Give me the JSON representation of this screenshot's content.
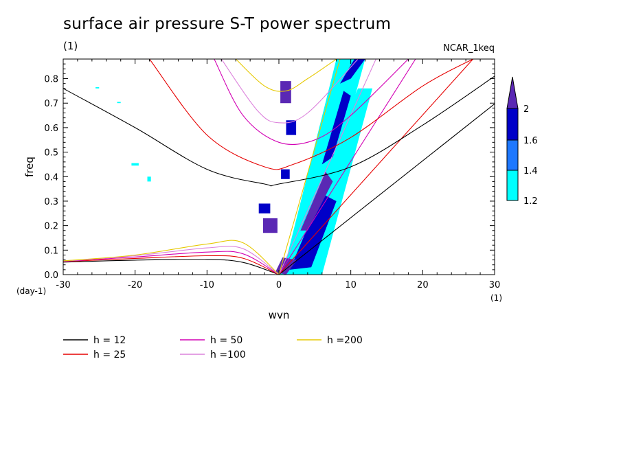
{
  "title": "surface air pressure S-T power spectrum",
  "subtitle_left": "(1)",
  "subtitle_right": "NCAR_1keq",
  "chart_data": {
    "type": "heatmap",
    "xlabel": "wvn",
    "ylabel": "freq",
    "x_unit": "(1)",
    "y_unit": "(day-1)",
    "xlim": [
      -30,
      30
    ],
    "ylim": [
      0.0,
      0.88
    ],
    "x_ticks": [
      "-30",
      "-20",
      "-10",
      "0",
      "10",
      "20",
      "30"
    ],
    "x_tick_values": [
      -30,
      -20,
      -10,
      0,
      10,
      20,
      30
    ],
    "y_ticks": [
      "0.0",
      "0.1",
      "0.2",
      "0.3",
      "0.4",
      "0.5",
      "0.6",
      "0.7",
      "0.8"
    ],
    "y_tick_values": [
      0.0,
      0.1,
      0.2,
      0.3,
      0.4,
      0.5,
      0.6,
      0.7,
      0.8
    ],
    "colorbar": {
      "labels": [
        "1.2",
        "1.4",
        "1.6",
        "2"
      ],
      "levels": [
        1.2,
        1.4,
        1.6,
        2.0
      ],
      "colors": [
        "#00ffff",
        "#1e78ff",
        "#0000c8",
        "#5a28b4"
      ],
      "extend": "max"
    },
    "dispersion_legend": [
      {
        "label": "h = 12",
        "color": "#000000"
      },
      {
        "label": "h = 25",
        "color": "#e60000"
      },
      {
        "label": "h = 50",
        "color": "#d200b4"
      },
      {
        "label": "h =100",
        "color": "#dc82dc"
      },
      {
        "label": "h =200",
        "color": "#e6c800"
      }
    ],
    "curves": {
      "kelvin_h12": {
        "x": [
          0,
          30
        ],
        "y": [
          0,
          0.697
        ]
      },
      "kelvin_h25": {
        "x": [
          0,
          27
        ],
        "y": [
          0,
          0.88
        ]
      },
      "kelvin_h50": {
        "x": [
          0,
          19
        ],
        "y": [
          0,
          0.88
        ]
      },
      "kelvin_h100": {
        "x": [
          0,
          13.5
        ],
        "y": [
          0,
          0.88
        ]
      },
      "kelvin_h200": {
        "x": [
          0,
          8.5
        ],
        "y": [
          0,
          0.88
        ]
      },
      "ig_h12": {
        "x": [
          -30,
          -20,
          -10,
          -2,
          0,
          10,
          20,
          30
        ],
        "y": [
          0.76,
          0.6,
          0.43,
          0.37,
          0.37,
          0.44,
          0.61,
          0.81
        ]
      },
      "ig_h25": {
        "x": [
          -18,
          -10,
          -2,
          2,
          10,
          20,
          27
        ],
        "y": [
          0.88,
          0.57,
          0.44,
          0.45,
          0.56,
          0.77,
          0.88
        ]
      },
      "ig_h50": {
        "x": [
          -9,
          -5,
          0,
          5,
          10,
          18
        ],
        "y": [
          0.88,
          0.65,
          0.54,
          0.55,
          0.65,
          0.88
        ]
      },
      "ig_h100": {
        "x": [
          -8,
          -3,
          0,
          4,
          11
        ],
        "y": [
          0.88,
          0.67,
          0.62,
          0.66,
          0.88
        ]
      },
      "ig_h200": {
        "x": [
          -6,
          -2,
          1,
          4,
          8
        ],
        "y": [
          0.88,
          0.77,
          0.75,
          0.8,
          0.88
        ]
      },
      "mrg_h12": {
        "x": [
          -30,
          -20,
          -10,
          -5,
          0
        ],
        "y": [
          0.051,
          0.059,
          0.062,
          0.05,
          0
        ]
      },
      "mrg_h25": {
        "x": [
          -30,
          -20,
          -10,
          -5,
          0
        ],
        "y": [
          0.053,
          0.066,
          0.077,
          0.067,
          0
        ]
      },
      "mrg_h50": {
        "x": [
          -30,
          -20,
          -10,
          -5,
          0
        ],
        "y": [
          0.054,
          0.072,
          0.092,
          0.085,
          0
        ]
      },
      "mrg_h100": {
        "x": [
          -30,
          -20,
          -10,
          -5,
          0
        ],
        "y": [
          0.055,
          0.077,
          0.109,
          0.106,
          0
        ]
      },
      "mrg_h200": {
        "x": [
          -30,
          -20,
          -10,
          -5,
          0
        ],
        "y": [
          0.056,
          0.08,
          0.125,
          0.13,
          0
        ]
      }
    },
    "power_regions": [
      {
        "level": 1.2,
        "x": [
          0.5,
          8.0,
          12.0,
          3.8,
          0.5
        ],
        "y": [
          0.0,
          0.88,
          0.88,
          0.0,
          0.0
        ]
      },
      {
        "level": 1.2,
        "x": [
          0.0,
          11.0,
          13.0,
          6.0,
          0.0
        ],
        "y": [
          0.0,
          0.76,
          0.76,
          0.0,
          0.0
        ]
      },
      {
        "level": 1.6,
        "x": [
          1.5,
          6.0,
          8.0,
          4.5,
          1.5
        ],
        "y": [
          0.02,
          0.33,
          0.3,
          0.03,
          0.02
        ]
      },
      {
        "level": 2.0,
        "x": [
          3.0,
          6.5,
          7.5,
          4.0,
          3.0
        ],
        "y": [
          0.18,
          0.42,
          0.38,
          0.18,
          0.18
        ]
      },
      {
        "level": 1.6,
        "x": [
          6.0,
          9.0,
          10.0,
          7.5,
          6.0
        ],
        "y": [
          0.45,
          0.75,
          0.73,
          0.48,
          0.45
        ]
      },
      {
        "level": 1.6,
        "x": [
          8.5,
          10.5,
          12.0,
          10.0,
          8.5
        ],
        "y": [
          0.78,
          0.88,
          0.88,
          0.8,
          0.78
        ]
      },
      {
        "level": 2.0,
        "x": [
          -0.5,
          0.5,
          2.5,
          1.0,
          -0.5
        ],
        "y": [
          0.01,
          0.07,
          0.06,
          0.0,
          0.01
        ]
      },
      {
        "level": 2.0,
        "x": [
          0.2,
          1.7,
          1.7,
          0.2,
          0.2
        ],
        "y": [
          0.7,
          0.7,
          0.79,
          0.79,
          0.7
        ]
      },
      {
        "level": 2.0,
        "x": [
          -2.2,
          -0.2,
          -0.2,
          -2.2,
          -2.2
        ],
        "y": [
          0.17,
          0.17,
          0.23,
          0.23,
          0.17
        ]
      },
      {
        "level": 1.6,
        "x": [
          -2.8,
          -1.2,
          -1.2,
          -2.8,
          -2.8
        ],
        "y": [
          0.25,
          0.25,
          0.29,
          0.29,
          0.25
        ]
      },
      {
        "level": 1.6,
        "x": [
          0.3,
          1.5,
          1.5,
          0.3,
          0.3
        ],
        "y": [
          0.39,
          0.39,
          0.43,
          0.43,
          0.39
        ]
      },
      {
        "level": 1.6,
        "x": [
          1.0,
          2.4,
          2.4,
          1.0,
          1.0
        ],
        "y": [
          0.57,
          0.57,
          0.63,
          0.63,
          0.57
        ]
      },
      {
        "level": 1.2,
        "x": [
          -18.3,
          -17.8,
          -17.8,
          -18.3,
          -18.3
        ],
        "y": [
          0.38,
          0.38,
          0.4,
          0.4,
          0.38
        ]
      },
      {
        "level": 1.2,
        "x": [
          -20.5,
          -19.5,
          -19.5,
          -20.5,
          -20.5
        ],
        "y": [
          0.445,
          0.445,
          0.455,
          0.455,
          0.445
        ]
      },
      {
        "level": 1.2,
        "x": [
          -25.5,
          -25,
          -25,
          -25.5,
          -25.5
        ],
        "y": [
          0.76,
          0.76,
          0.765,
          0.765,
          0.76
        ]
      },
      {
        "level": 1.2,
        "x": [
          -22.5,
          -22,
          -22,
          -22.5,
          -22.5
        ],
        "y": [
          0.7,
          0.7,
          0.705,
          0.705,
          0.7
        ]
      }
    ]
  }
}
